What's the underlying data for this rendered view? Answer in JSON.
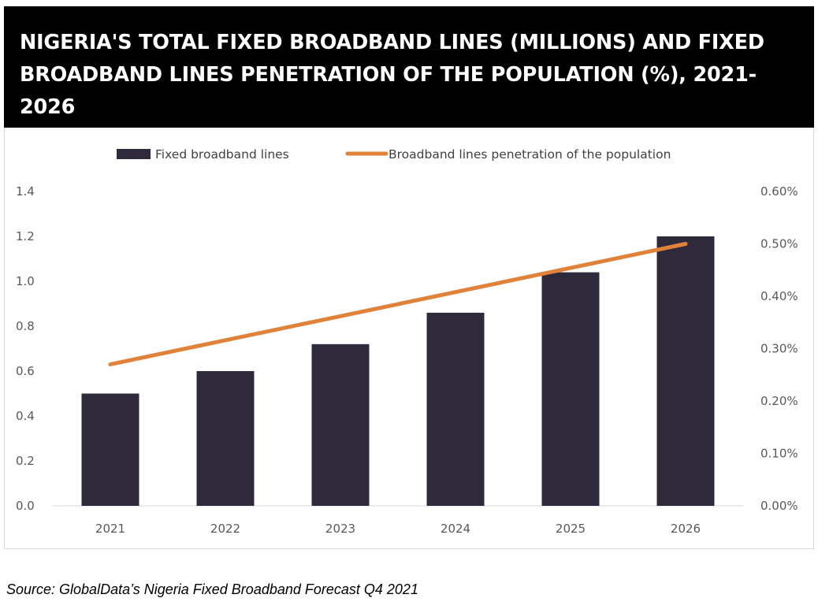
{
  "chart_data": {
    "type": "bar+line",
    "title": "NIGERIA'S TOTAL FIXED BROADBAND LINES (MILLIONS) AND FIXED BROADBAND LINES PENETRATION OF THE POPULATION (%), 2021-2026",
    "categories": [
      "2021",
      "2022",
      "2023",
      "2024",
      "2025",
      "2026"
    ],
    "series": [
      {
        "name": "Fixed broadband lines",
        "type": "bar",
        "axis": "left",
        "color": "#2e2a3b",
        "values": [
          0.5,
          0.6,
          0.72,
          0.86,
          1.04,
          1.2
        ]
      },
      {
        "name": "Broadband lines penetration of the population",
        "type": "line",
        "axis": "right",
        "color": "#e0823a",
        "values": [
          0.27,
          0.316,
          0.362,
          0.408,
          0.454,
          0.5
        ]
      }
    ],
    "y_left": {
      "range": [
        0,
        1.4
      ],
      "ticks": [
        "0.0",
        "0.2",
        "0.4",
        "0.6",
        "0.8",
        "1.0",
        "1.2",
        "1.4"
      ]
    },
    "y_right": {
      "range": [
        0,
        0.6
      ],
      "unit": "%",
      "ticks": [
        "0.00%",
        "0.10%",
        "0.20%",
        "0.30%",
        "0.40%",
        "0.50%",
        "0.60%"
      ]
    },
    "grid": false,
    "legend": "top"
  },
  "source": "Source: GlobalData’s Nigeria Fixed Broadband Forecast Q4 2021"
}
